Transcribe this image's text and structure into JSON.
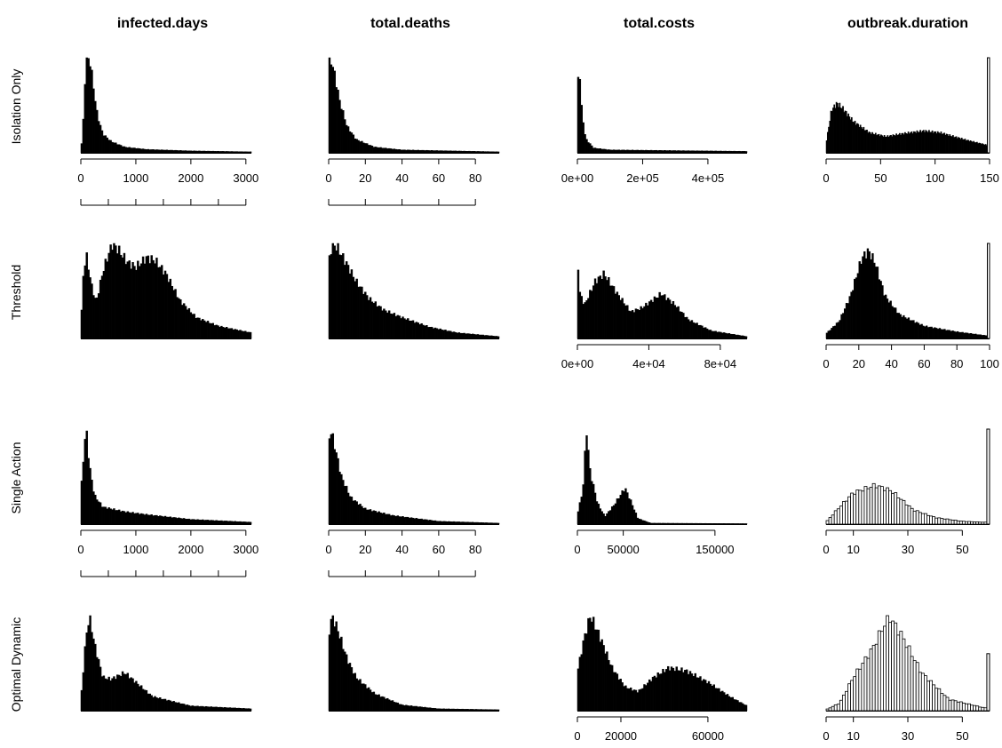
{
  "columns": [
    "infected.days",
    "total.deaths",
    "total.costs",
    "outbreak.duration"
  ],
  "rows": [
    "Isolation Only",
    "Threshold",
    "Single Action",
    "Optimal Dynamic"
  ],
  "chart_data": [
    {
      "type": "bar",
      "row": "Isolation Only",
      "column": "infected.days",
      "xlim": [
        0,
        3100
      ],
      "bins": 100,
      "fill": "black",
      "xticks": [
        0,
        1000,
        2000,
        3000
      ],
      "tick_labels": [
        "0",
        "1000",
        "2000",
        "3000"
      ],
      "scale_bar": true,
      "density": [
        {
          "x": 0,
          "y": 0
        },
        {
          "x": 40,
          "y": 25
        },
        {
          "x": 80,
          "y": 80
        },
        {
          "x": 110,
          "y": 100
        },
        {
          "x": 170,
          "y": 96
        },
        {
          "x": 230,
          "y": 70
        },
        {
          "x": 300,
          "y": 40
        },
        {
          "x": 400,
          "y": 20
        },
        {
          "x": 550,
          "y": 12
        },
        {
          "x": 800,
          "y": 6
        },
        {
          "x": 1200,
          "y": 3.5
        },
        {
          "x": 2000,
          "y": 2
        },
        {
          "x": 3100,
          "y": 1
        }
      ]
    },
    {
      "type": "bar",
      "row": "Isolation Only",
      "column": "total.deaths",
      "xlim": [
        0,
        93
      ],
      "bins": 100,
      "fill": "black",
      "xticks": [
        0,
        20,
        40,
        60,
        80
      ],
      "tick_labels": [
        "0",
        "20",
        "40",
        "60",
        "80"
      ],
      "scale_bar": true,
      "density": [
        {
          "x": 0,
          "y": 90
        },
        {
          "x": 1,
          "y": 100
        },
        {
          "x": 3,
          "y": 85
        },
        {
          "x": 6,
          "y": 55
        },
        {
          "x": 10,
          "y": 28
        },
        {
          "x": 15,
          "y": 14
        },
        {
          "x": 25,
          "y": 6
        },
        {
          "x": 40,
          "y": 3
        },
        {
          "x": 93,
          "y": 1
        }
      ]
    },
    {
      "type": "bar",
      "row": "Isolation Only",
      "column": "total.costs",
      "xlim": [
        0,
        520000
      ],
      "bins": 100,
      "fill": "black",
      "xticks": [
        0,
        200000,
        400000
      ],
      "tick_labels": [
        "0e+00",
        "2e+05",
        "4e+05"
      ],
      "density": [
        {
          "x": 0,
          "y": 60
        },
        {
          "x": 5000,
          "y": 100
        },
        {
          "x": 12000,
          "y": 50
        },
        {
          "x": 25000,
          "y": 15
        },
        {
          "x": 50000,
          "y": 5
        },
        {
          "x": 100000,
          "y": 3
        },
        {
          "x": 520000,
          "y": 1.5
        }
      ]
    },
    {
      "type": "bar",
      "row": "Isolation Only",
      "column": "outbreak.duration",
      "xlim": [
        0,
        150
      ],
      "bins": 150,
      "fill": "black",
      "xticks": [
        0,
        50,
        100,
        150
      ],
      "tick_labels": [
        "0",
        "50",
        "100",
        "150"
      ],
      "tail_spike": 100,
      "density": [
        {
          "x": 0,
          "y": 10
        },
        {
          "x": 5,
          "y": 45
        },
        {
          "x": 10,
          "y": 52
        },
        {
          "x": 15,
          "y": 47
        },
        {
          "x": 25,
          "y": 33
        },
        {
          "x": 40,
          "y": 21
        },
        {
          "x": 55,
          "y": 17
        },
        {
          "x": 70,
          "y": 20
        },
        {
          "x": 90,
          "y": 23
        },
        {
          "x": 105,
          "y": 21
        },
        {
          "x": 130,
          "y": 13
        },
        {
          "x": 148,
          "y": 8
        }
      ]
    },
    {
      "type": "bar",
      "row": "Threshold",
      "column": "infected.days",
      "xlim": [
        0,
        3100
      ],
      "bins": 100,
      "fill": "black",
      "density": [
        {
          "x": 0,
          "y": 10
        },
        {
          "x": 50,
          "y": 70
        },
        {
          "x": 100,
          "y": 88
        },
        {
          "x": 200,
          "y": 55
        },
        {
          "x": 280,
          "y": 38
        },
        {
          "x": 400,
          "y": 70
        },
        {
          "x": 500,
          "y": 88
        },
        {
          "x": 580,
          "y": 100
        },
        {
          "x": 700,
          "y": 92
        },
        {
          "x": 850,
          "y": 80
        },
        {
          "x": 1000,
          "y": 75
        },
        {
          "x": 1200,
          "y": 85
        },
        {
          "x": 1350,
          "y": 82
        },
        {
          "x": 1550,
          "y": 68
        },
        {
          "x": 1800,
          "y": 40
        },
        {
          "x": 2100,
          "y": 22
        },
        {
          "x": 2500,
          "y": 13
        },
        {
          "x": 3100,
          "y": 6
        }
      ]
    },
    {
      "type": "bar",
      "row": "Threshold",
      "column": "total.deaths",
      "xlim": [
        0,
        93
      ],
      "bins": 100,
      "fill": "black",
      "density": [
        {
          "x": 0,
          "y": 80
        },
        {
          "x": 2,
          "y": 100
        },
        {
          "x": 5,
          "y": 95
        },
        {
          "x": 10,
          "y": 78
        },
        {
          "x": 15,
          "y": 60
        },
        {
          "x": 22,
          "y": 42
        },
        {
          "x": 30,
          "y": 30
        },
        {
          "x": 40,
          "y": 22
        },
        {
          "x": 55,
          "y": 12
        },
        {
          "x": 70,
          "y": 6
        },
        {
          "x": 93,
          "y": 2
        }
      ]
    },
    {
      "type": "bar",
      "row": "Threshold",
      "column": "total.costs",
      "xlim": [
        0,
        95000
      ],
      "bins": 100,
      "fill": "black",
      "xticks": [
        0,
        40000,
        80000
      ],
      "tick_labels": [
        "0e+00",
        "4e+04",
        "8e+04"
      ],
      "density": [
        {
          "x": 0,
          "y": 100
        },
        {
          "x": 1000,
          "y": 50
        },
        {
          "x": 4000,
          "y": 35
        },
        {
          "x": 10000,
          "y": 60
        },
        {
          "x": 15000,
          "y": 68
        },
        {
          "x": 22000,
          "y": 48
        },
        {
          "x": 30000,
          "y": 28
        },
        {
          "x": 36000,
          "y": 32
        },
        {
          "x": 47000,
          "y": 47
        },
        {
          "x": 55000,
          "y": 35
        },
        {
          "x": 62000,
          "y": 20
        },
        {
          "x": 75000,
          "y": 8
        },
        {
          "x": 95000,
          "y": 2
        }
      ]
    },
    {
      "type": "bar",
      "row": "Threshold",
      "column": "outbreak.duration",
      "xlim": [
        0,
        100
      ],
      "bins": 100,
      "fill": "black",
      "xticks": [
        0,
        20,
        40,
        60,
        80,
        100
      ],
      "tick_labels": [
        "0",
        "20",
        "40",
        "60",
        "80",
        "100"
      ],
      "tail_spike": 100,
      "density": [
        {
          "x": 0,
          "y": 5
        },
        {
          "x": 8,
          "y": 18
        },
        {
          "x": 15,
          "y": 45
        },
        {
          "x": 22,
          "y": 85
        },
        {
          "x": 26,
          "y": 92
        },
        {
          "x": 30,
          "y": 80
        },
        {
          "x": 36,
          "y": 45
        },
        {
          "x": 45,
          "y": 25
        },
        {
          "x": 60,
          "y": 13
        },
        {
          "x": 80,
          "y": 7
        },
        {
          "x": 98,
          "y": 3
        }
      ]
    },
    {
      "type": "bar",
      "row": "Single Action",
      "column": "infected.days",
      "xlim": [
        0,
        3100
      ],
      "bins": 100,
      "fill": "black",
      "xticks": [
        0,
        1000,
        2000,
        3000
      ],
      "tick_labels": [
        "0",
        "1000",
        "2000",
        "3000"
      ],
      "scale_bar": true,
      "density": [
        {
          "x": 0,
          "y": 30
        },
        {
          "x": 60,
          "y": 80
        },
        {
          "x": 100,
          "y": 100
        },
        {
          "x": 160,
          "y": 60
        },
        {
          "x": 250,
          "y": 30
        },
        {
          "x": 400,
          "y": 18
        },
        {
          "x": 800,
          "y": 13
        },
        {
          "x": 1200,
          "y": 10
        },
        {
          "x": 2000,
          "y": 5
        },
        {
          "x": 3100,
          "y": 2
        }
      ]
    },
    {
      "type": "bar",
      "row": "Single Action",
      "column": "total.deaths",
      "xlim": [
        0,
        93
      ],
      "bins": 100,
      "fill": "black",
      "xticks": [
        0,
        20,
        40,
        60,
        80
      ],
      "tick_labels": [
        "0",
        "20",
        "40",
        "60",
        "80"
      ],
      "scale_bar": true,
      "density": [
        {
          "x": 0,
          "y": 85
        },
        {
          "x": 1,
          "y": 100
        },
        {
          "x": 3,
          "y": 85
        },
        {
          "x": 7,
          "y": 50
        },
        {
          "x": 12,
          "y": 28
        },
        {
          "x": 20,
          "y": 16
        },
        {
          "x": 35,
          "y": 9
        },
        {
          "x": 60,
          "y": 3
        },
        {
          "x": 93,
          "y": 1
        }
      ]
    },
    {
      "type": "bar",
      "row": "Single Action",
      "column": "total.costs",
      "xlim": [
        0,
        185000
      ],
      "bins": 100,
      "fill": "black",
      "xticks": [
        0,
        50000,
        150000
      ],
      "tick_labels": [
        "0",
        "50000",
        "150000"
      ],
      "density": [
        {
          "x": 0,
          "y": 10
        },
        {
          "x": 6000,
          "y": 35
        },
        {
          "x": 10000,
          "y": 100
        },
        {
          "x": 14000,
          "y": 55
        },
        {
          "x": 22000,
          "y": 22
        },
        {
          "x": 30000,
          "y": 8
        },
        {
          "x": 40000,
          "y": 20
        },
        {
          "x": 52000,
          "y": 38
        },
        {
          "x": 58000,
          "y": 25
        },
        {
          "x": 66000,
          "y": 6
        },
        {
          "x": 80000,
          "y": 1
        },
        {
          "x": 185000,
          "y": 0.5
        }
      ]
    },
    {
      "type": "bar",
      "row": "Single Action",
      "column": "outbreak.duration",
      "xlim": [
        0,
        60
      ],
      "bins": 60,
      "fill": "white",
      "xticks": [
        0,
        10,
        30,
        50
      ],
      "tick_labels": [
        "0",
        "10",
        "30",
        "50"
      ],
      "tail_spike": 100,
      "density": [
        {
          "x": 0,
          "y": 2
        },
        {
          "x": 4,
          "y": 15
        },
        {
          "x": 10,
          "y": 33
        },
        {
          "x": 18,
          "y": 41
        },
        {
          "x": 24,
          "y": 35
        },
        {
          "x": 32,
          "y": 15
        },
        {
          "x": 40,
          "y": 7
        },
        {
          "x": 50,
          "y": 3
        },
        {
          "x": 58,
          "y": 2
        }
      ]
    },
    {
      "type": "bar",
      "row": "Optimal Dynamic",
      "column": "infected.days",
      "xlim": [
        0,
        3100
      ],
      "bins": 100,
      "fill": "black",
      "density": [
        {
          "x": 0,
          "y": 10
        },
        {
          "x": 50,
          "y": 45
        },
        {
          "x": 100,
          "y": 80
        },
        {
          "x": 160,
          "y": 100
        },
        {
          "x": 250,
          "y": 70
        },
        {
          "x": 400,
          "y": 35
        },
        {
          "x": 550,
          "y": 33
        },
        {
          "x": 800,
          "y": 40
        },
        {
          "x": 1000,
          "y": 30
        },
        {
          "x": 1300,
          "y": 15
        },
        {
          "x": 2000,
          "y": 5
        },
        {
          "x": 3100,
          "y": 2
        }
      ]
    },
    {
      "type": "bar",
      "row": "Optimal Dynamic",
      "column": "total.deaths",
      "xlim": [
        0,
        93
      ],
      "bins": 100,
      "fill": "black",
      "density": [
        {
          "x": 0,
          "y": 80
        },
        {
          "x": 2,
          "y": 100
        },
        {
          "x": 5,
          "y": 85
        },
        {
          "x": 10,
          "y": 55
        },
        {
          "x": 15,
          "y": 35
        },
        {
          "x": 25,
          "y": 18
        },
        {
          "x": 40,
          "y": 6
        },
        {
          "x": 60,
          "y": 2
        },
        {
          "x": 93,
          "y": 1
        }
      ]
    },
    {
      "type": "bar",
      "row": "Optimal Dynamic",
      "column": "total.costs",
      "xlim": [
        0,
        78000
      ],
      "bins": 100,
      "fill": "black",
      "xticks": [
        0,
        20000,
        60000
      ],
      "tick_labels": [
        "0",
        "20000",
        "60000"
      ],
      "density": [
        {
          "x": 0,
          "y": 40
        },
        {
          "x": 3000,
          "y": 75
        },
        {
          "x": 6000,
          "y": 100
        },
        {
          "x": 10000,
          "y": 80
        },
        {
          "x": 16000,
          "y": 45
        },
        {
          "x": 22000,
          "y": 25
        },
        {
          "x": 28000,
          "y": 20
        },
        {
          "x": 35000,
          "y": 35
        },
        {
          "x": 42000,
          "y": 45
        },
        {
          "x": 50000,
          "y": 42
        },
        {
          "x": 60000,
          "y": 30
        },
        {
          "x": 70000,
          "y": 15
        },
        {
          "x": 78000,
          "y": 5
        }
      ]
    },
    {
      "type": "bar",
      "row": "Optimal Dynamic",
      "column": "outbreak.duration",
      "xlim": [
        0,
        60
      ],
      "bins": 60,
      "fill": "white",
      "xticks": [
        0,
        10,
        30,
        50
      ],
      "tick_labels": [
        "0",
        "10",
        "30",
        "50"
      ],
      "tail_spike": 60,
      "density": [
        {
          "x": 0,
          "y": 1
        },
        {
          "x": 5,
          "y": 8
        },
        {
          "x": 10,
          "y": 35
        },
        {
          "x": 17,
          "y": 65
        },
        {
          "x": 23,
          "y": 100
        },
        {
          "x": 28,
          "y": 78
        },
        {
          "x": 35,
          "y": 40
        },
        {
          "x": 45,
          "y": 12
        },
        {
          "x": 58,
          "y": 3
        }
      ]
    }
  ]
}
